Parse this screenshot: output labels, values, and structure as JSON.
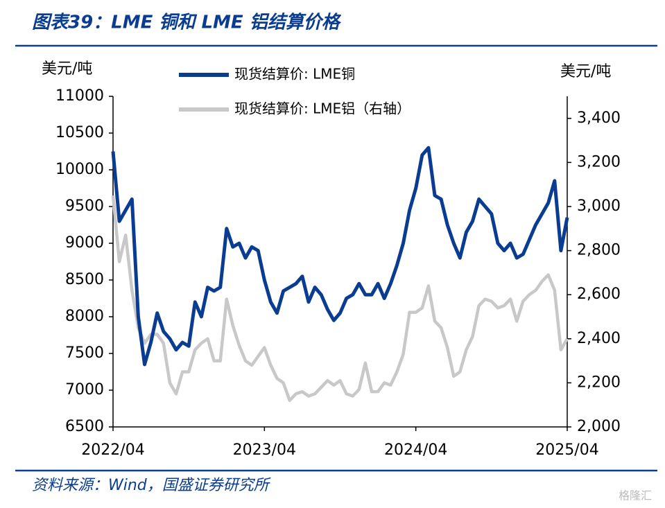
{
  "chart_data": {
    "type": "line",
    "title": "图表39：LME 铜和 LME 铝结算价格",
    "y_label": "美元/吨",
    "y2_label": "美元/吨",
    "categories": [
      "2022/04",
      null,
      null,
      null,
      null,
      null,
      null,
      null,
      null,
      null,
      null,
      null,
      null,
      null,
      null,
      null,
      null,
      null,
      null,
      null,
      null,
      null,
      null,
      null,
      "2023/04",
      null,
      null,
      null,
      null,
      null,
      null,
      null,
      null,
      null,
      null,
      null,
      null,
      null,
      null,
      null,
      null,
      null,
      null,
      null,
      null,
      null,
      null,
      null,
      "2024/04",
      null,
      null,
      null,
      null,
      null,
      null,
      null,
      null,
      null,
      null,
      null,
      null,
      null,
      null,
      null,
      null,
      null,
      null,
      null,
      null,
      null,
      null,
      null,
      "2025/04"
    ],
    "series": [
      {
        "name": "现货结算价: LME铜",
        "color": "#0a3d91",
        "values": [
          10250,
          9300,
          9450,
          9600,
          8000,
          7350,
          7650,
          8050,
          7800,
          7700,
          7550,
          7650,
          7600,
          8200,
          8000,
          8400,
          8350,
          8400,
          9200,
          8950,
          9000,
          8800,
          8950,
          8900,
          8500,
          8200,
          8050,
          8350,
          8400,
          8450,
          8550,
          8200,
          8400,
          8300,
          8100,
          7950,
          8050,
          8250,
          8300,
          8450,
          8300,
          8300,
          8450,
          8250,
          8450,
          8700,
          9000,
          9450,
          9750,
          10200,
          10300,
          9650,
          9600,
          9250,
          9000,
          8800,
          9150,
          9300,
          9600,
          9500,
          9400,
          9000,
          8900,
          9000,
          8800,
          8850,
          9050,
          9250,
          9400,
          9550,
          9850,
          8900,
          9350
        ]
      },
      {
        "name": "现货结算价: LME铝（右轴）",
        "color": "#c8c8c8",
        "axis": "y2",
        "values": [
          3050,
          2750,
          2870,
          2620,
          2450,
          2380,
          2420,
          2420,
          2380,
          2200,
          2150,
          2250,
          2250,
          2350,
          2380,
          2400,
          2300,
          2300,
          2580,
          2460,
          2370,
          2300,
          2280,
          2320,
          2360,
          2280,
          2220,
          2200,
          2120,
          2150,
          2160,
          2140,
          2150,
          2180,
          2210,
          2190,
          2210,
          2150,
          2140,
          2170,
          2290,
          2160,
          2160,
          2200,
          2190,
          2250,
          2330,
          2520,
          2520,
          2540,
          2640,
          2480,
          2450,
          2360,
          2230,
          2250,
          2350,
          2410,
          2550,
          2580,
          2570,
          2540,
          2550,
          2580,
          2480,
          2570,
          2600,
          2620,
          2660,
          2690,
          2620,
          2350,
          2400
        ]
      }
    ],
    "ylim": [
      6500,
      11000
    ],
    "yticks": [
      6500,
      7000,
      7500,
      8000,
      8500,
      9000,
      9500,
      10000,
      10500,
      11000
    ],
    "y2lim": [
      2000,
      3500
    ],
    "y2ticks": [
      {
        "value": 2000,
        "label": "2,000"
      },
      {
        "value": 2200,
        "label": "2,200"
      },
      {
        "value": 2400,
        "label": "2,400"
      },
      {
        "value": 2600,
        "label": "2,600"
      },
      {
        "value": 2800,
        "label": "2,800"
      },
      {
        "value": 3000,
        "label": "3,000"
      },
      {
        "value": 3200,
        "label": "3,200"
      },
      {
        "value": 3400,
        "label": "3,400"
      }
    ],
    "grid": false
  },
  "source": "资料来源：Wind，国盛证券研究所",
  "watermark": "格隆汇"
}
